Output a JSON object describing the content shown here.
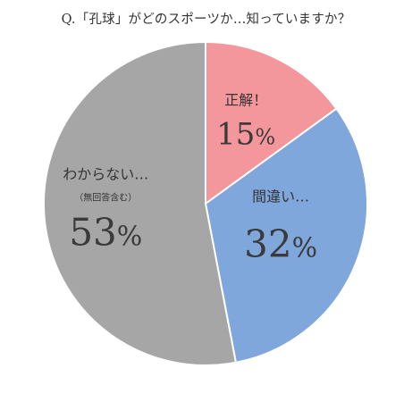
{
  "chart_data": {
    "type": "pie",
    "title": "Q.「孔球」がどのスポーツか…知っていますか？",
    "categories": [
      "正解！",
      "間違い…",
      "わからない…"
    ],
    "sublabels": [
      "",
      "",
      "（無回答含む）"
    ],
    "values": [
      15,
      32,
      53
    ],
    "unit": "%",
    "colors": [
      "#f4979c",
      "#7fa7dc",
      "#a6a6a6"
    ],
    "legend": "none"
  }
}
